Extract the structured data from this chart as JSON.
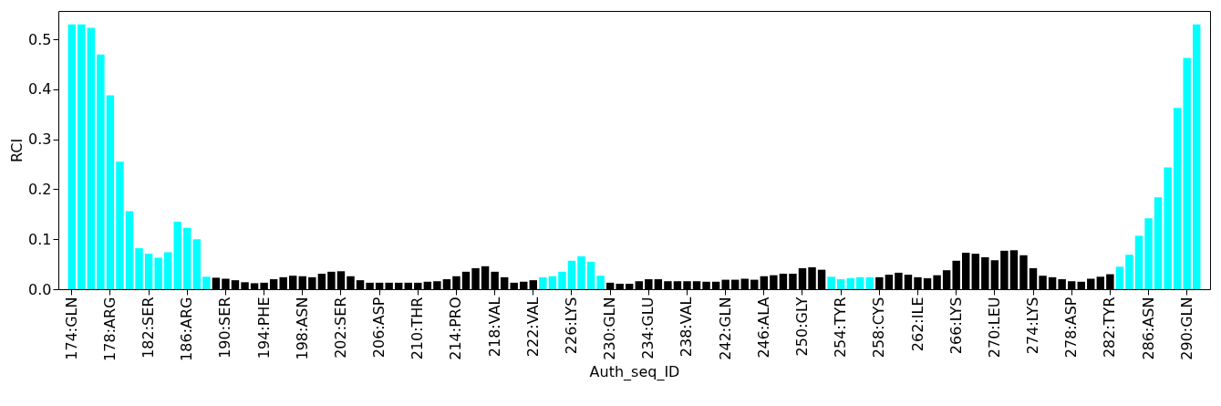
{
  "chart_data": {
    "type": "bar",
    "xlabel": "Auth_seq_ID",
    "ylabel": "RCI",
    "categories": [
      "174:GLN",
      null,
      null,
      null,
      "178:ARG",
      null,
      null,
      null,
      "182:SER",
      null,
      null,
      null,
      "186:ARG",
      null,
      null,
      null,
      "190:SER",
      null,
      null,
      null,
      "194:PHE",
      null,
      null,
      null,
      "198:ASN",
      null,
      null,
      null,
      "202:SER",
      null,
      null,
      null,
      "206:ASP",
      null,
      null,
      null,
      "210:THR",
      null,
      null,
      null,
      "214:PRO",
      null,
      null,
      null,
      "218:VAL",
      null,
      null,
      null,
      "222:VAL",
      null,
      null,
      null,
      "226:LYS",
      null,
      null,
      null,
      "230:GLN",
      null,
      null,
      null,
      "234:GLU",
      null,
      null,
      null,
      "238:VAL",
      null,
      null,
      null,
      "242:GLN",
      null,
      null,
      null,
      "246:ALA",
      null,
      null,
      null,
      "250:GLY",
      null,
      null,
      null,
      "254:TYR",
      null,
      null,
      null,
      "258:CYS",
      null,
      null,
      null,
      "262:ILE",
      null,
      null,
      null,
      "266:LYS",
      null,
      null,
      null,
      "270:LEU",
      null,
      null,
      null,
      "274:LYS",
      null,
      null,
      null,
      "278:ASP",
      null,
      null,
      null,
      "282:TYR",
      null,
      null,
      null,
      "286:ASN",
      null,
      null,
      null,
      "290:GLN",
      null
    ],
    "values": [
      0.53,
      0.53,
      0.523,
      0.47,
      0.388,
      0.255,
      0.156,
      0.082,
      0.071,
      0.063,
      0.074,
      0.135,
      0.123,
      0.1,
      0.025,
      0.023,
      0.021,
      0.018,
      0.014,
      0.012,
      0.013,
      0.02,
      0.024,
      0.027,
      0.026,
      0.024,
      0.031,
      0.035,
      0.036,
      0.026,
      0.018,
      0.013,
      0.013,
      0.013,
      0.013,
      0.013,
      0.013,
      0.015,
      0.016,
      0.02,
      0.026,
      0.035,
      0.042,
      0.046,
      0.035,
      0.024,
      0.013,
      0.015,
      0.018,
      0.024,
      0.026,
      0.035,
      0.057,
      0.066,
      0.055,
      0.027,
      0.013,
      0.011,
      0.011,
      0.016,
      0.02,
      0.02,
      0.016,
      0.016,
      0.016,
      0.016,
      0.015,
      0.015,
      0.019,
      0.019,
      0.021,
      0.019,
      0.026,
      0.028,
      0.031,
      0.031,
      0.042,
      0.044,
      0.039,
      0.025,
      0.02,
      0.022,
      0.024,
      0.024,
      0.024,
      0.029,
      0.033,
      0.029,
      0.024,
      0.022,
      0.028,
      0.038,
      0.057,
      0.073,
      0.071,
      0.064,
      0.058,
      0.077,
      0.078,
      0.068,
      0.042,
      0.027,
      0.024,
      0.02,
      0.016,
      0.015,
      0.021,
      0.025,
      0.03,
      0.045,
      0.069,
      0.107,
      0.142,
      0.184,
      0.244,
      0.363,
      0.463,
      0.53
    ],
    "colors": [
      "#00ffff",
      "#00ffff",
      "#00ffff",
      "#00ffff",
      "#00ffff",
      "#00ffff",
      "#00ffff",
      "#00ffff",
      "#00ffff",
      "#00ffff",
      "#00ffff",
      "#00ffff",
      "#00ffff",
      "#00ffff",
      "#00ffff",
      "#000000",
      "#000000",
      "#000000",
      "#000000",
      "#000000",
      "#000000",
      "#000000",
      "#000000",
      "#000000",
      "#000000",
      "#000000",
      "#000000",
      "#000000",
      "#000000",
      "#000000",
      "#000000",
      "#000000",
      "#000000",
      "#000000",
      "#000000",
      "#000000",
      "#000000",
      "#000000",
      "#000000",
      "#000000",
      "#000000",
      "#000000",
      "#000000",
      "#000000",
      "#000000",
      "#000000",
      "#000000",
      "#000000",
      "#000000",
      "#00ffff",
      "#00ffff",
      "#00ffff",
      "#00ffff",
      "#00ffff",
      "#00ffff",
      "#00ffff",
      "#000000",
      "#000000",
      "#000000",
      "#000000",
      "#000000",
      "#000000",
      "#000000",
      "#000000",
      "#000000",
      "#000000",
      "#000000",
      "#000000",
      "#000000",
      "#000000",
      "#000000",
      "#000000",
      "#000000",
      "#000000",
      "#000000",
      "#000000",
      "#000000",
      "#000000",
      "#000000",
      "#00ffff",
      "#00ffff",
      "#00ffff",
      "#00ffff",
      "#00ffff",
      "#000000",
      "#000000",
      "#000000",
      "#000000",
      "#000000",
      "#000000",
      "#000000",
      "#000000",
      "#000000",
      "#000000",
      "#000000",
      "#000000",
      "#000000",
      "#000000",
      "#000000",
      "#000000",
      "#000000",
      "#000000",
      "#000000",
      "#000000",
      "#000000",
      "#000000",
      "#000000",
      "#000000",
      "#000000",
      "#00ffff",
      "#00ffff",
      "#00ffff",
      "#00ffff",
      "#00ffff",
      "#00ffff",
      "#00ffff",
      "#00ffff",
      "#00ffff"
    ],
    "ylim": [
      0,
      0.557
    ],
    "yticks": [
      {
        "value": 0,
        "label": "0.0"
      },
      {
        "value": 0.1,
        "label": "0.1"
      },
      {
        "value": 0.2,
        "label": "0.2"
      },
      {
        "value": 0.3,
        "label": "0.3"
      },
      {
        "value": 0.4,
        "label": "0.4"
      },
      {
        "value": 0.5,
        "label": "0.5"
      }
    ],
    "grid": false
  }
}
